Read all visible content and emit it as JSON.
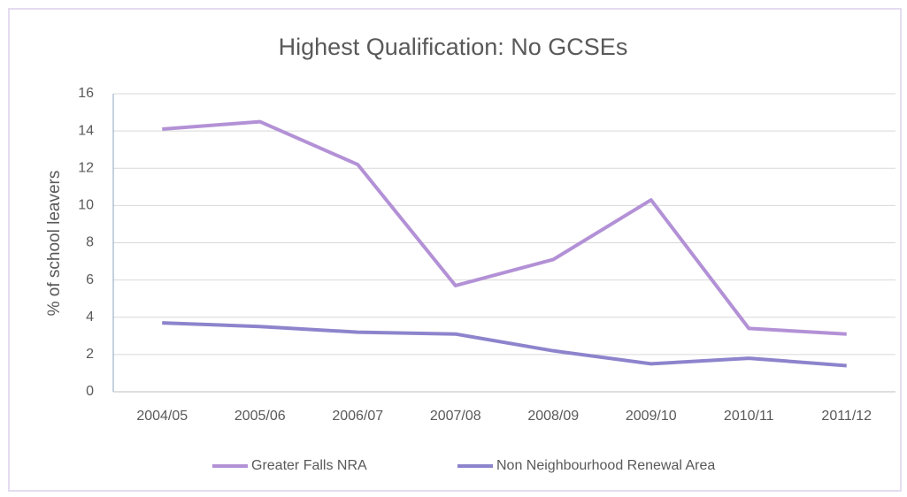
{
  "chart_data": {
    "type": "line",
    "title": "Highest Qualification: No GCSEs",
    "y_label": "% of school leavers",
    "categories": [
      "2004/05",
      "2005/06",
      "2006/07",
      "2007/08",
      "2008/09",
      "2009/10",
      "2010/11",
      "2011/12"
    ],
    "series": [
      {
        "name": "Greater Falls NRA",
        "color": "#b391d6",
        "values": [
          14.1,
          14.5,
          12.2,
          5.7,
          7.1,
          10.3,
          3.4,
          3.1
        ]
      },
      {
        "name": "Non Neighbourhood Renewal Area",
        "color": "#8c84cc",
        "values": [
          3.7,
          3.5,
          3.2,
          3.1,
          2.2,
          1.5,
          1.8,
          1.4
        ]
      }
    ],
    "ylim": [
      0,
      16
    ],
    "yticks": [
      0,
      2,
      4,
      6,
      8,
      10,
      12,
      14,
      16
    ],
    "grid": true,
    "legend": "bottom"
  }
}
